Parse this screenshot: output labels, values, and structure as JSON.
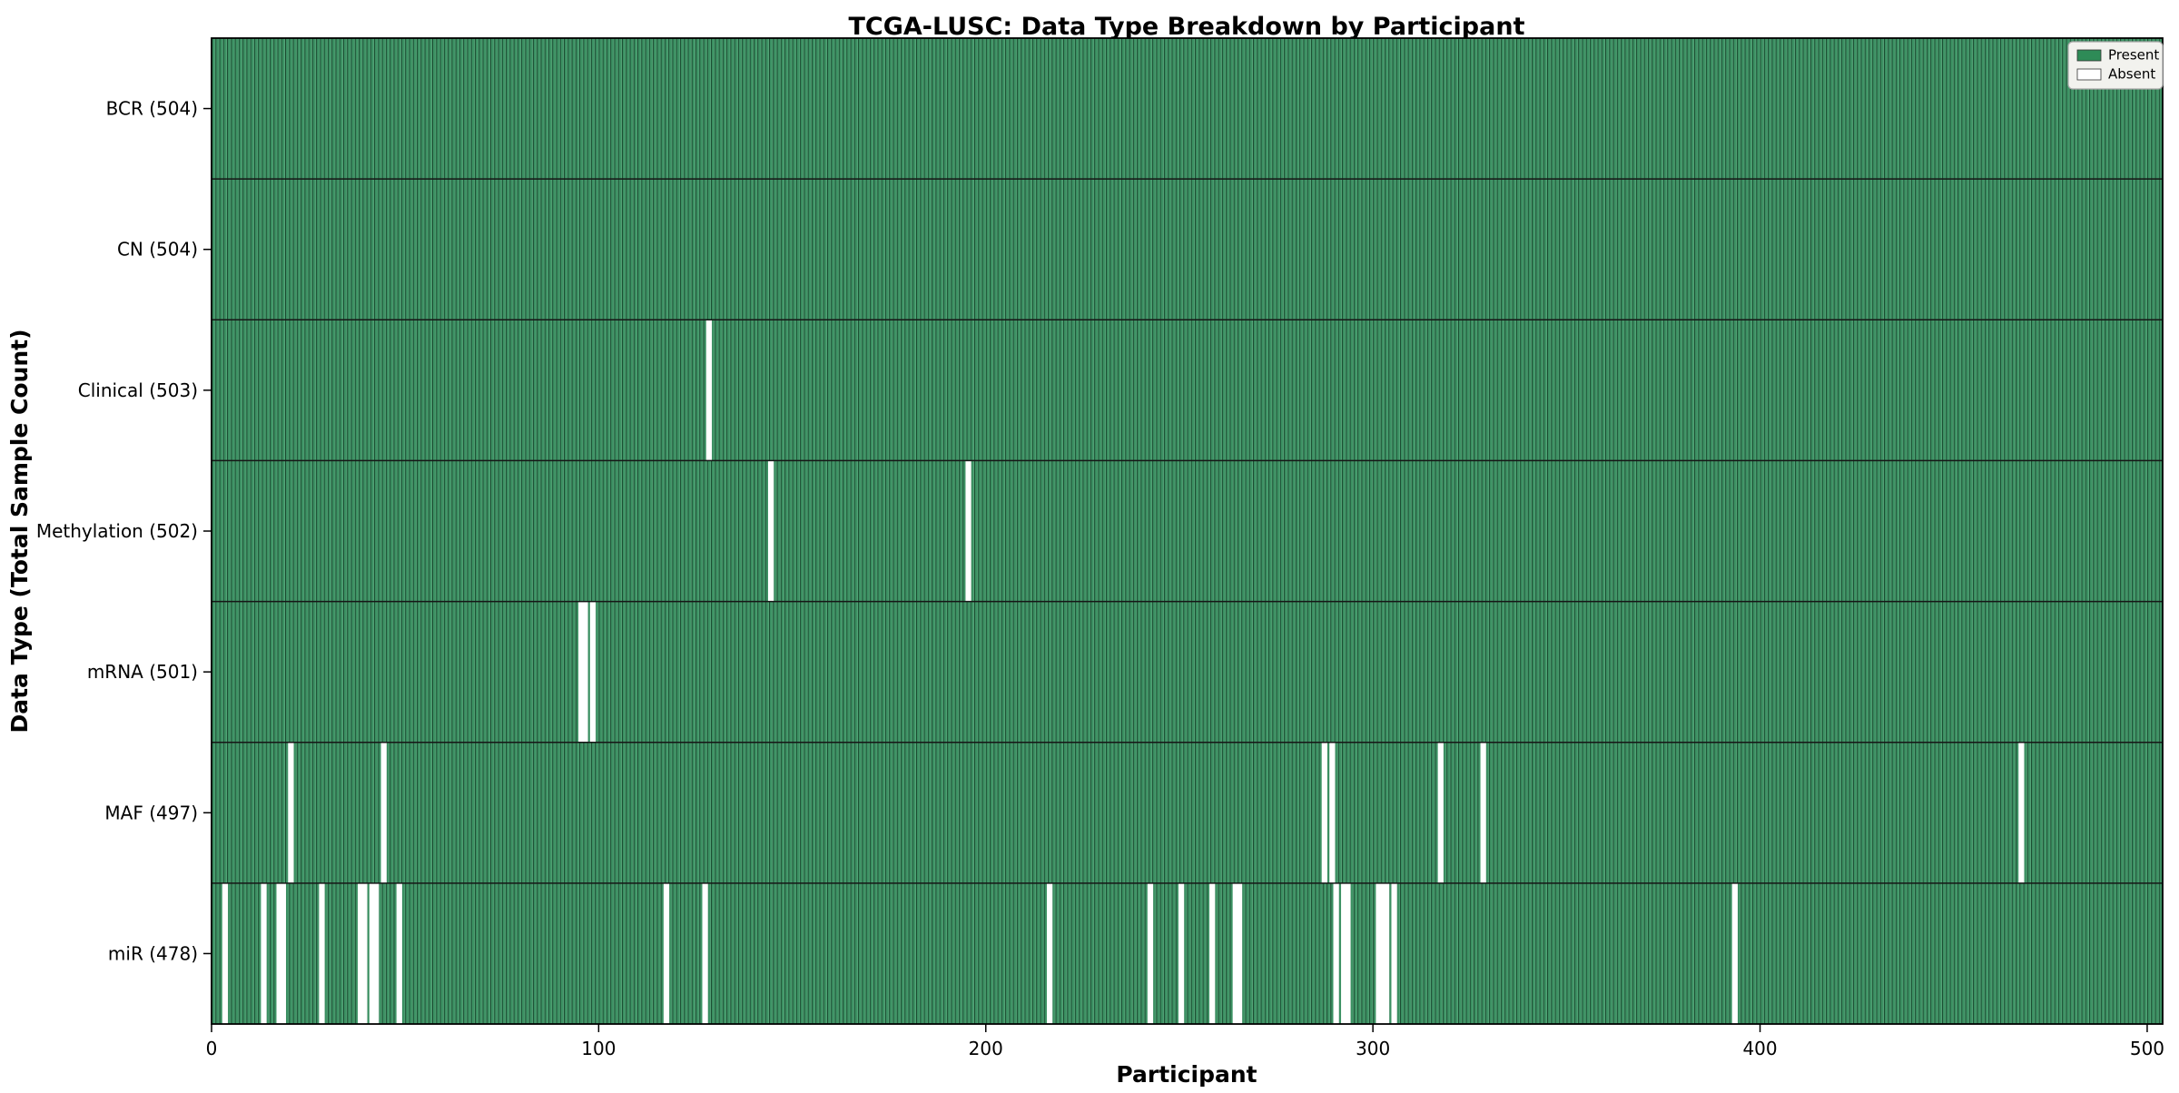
{
  "figure": {
    "kind": "matplotlib-style presence matrix",
    "background": "#ffffff"
  },
  "colors": {
    "present_green": "#2e8b57",
    "bar_face": "#3c9163",
    "bar_edge_dark": "#17462c",
    "bar_edge_light": "#61ad82",
    "absent_white": "#ffffff",
    "frame": "#000000",
    "row_divider": "#161616",
    "legend_bg": "#f2f2ee",
    "legend_border": "#a8a8a8"
  },
  "chart_data": {
    "type": "heatmap",
    "title": "TCGA-LUSC: Data Type Breakdown by Participant",
    "xlabel": "Participant",
    "ylabel": "Data Type (Total Sample Count)",
    "legend_position": "upper right",
    "grid": false,
    "n_participants": 504,
    "x_ticks": [
      0,
      100,
      200,
      300,
      400,
      500
    ],
    "x_max": 504,
    "legend": [
      {
        "label": "Present",
        "color": "#2e8b57"
      },
      {
        "label": "Absent",
        "color": "#ffffff"
      }
    ],
    "rows": [
      {
        "label": "BCR (504)",
        "data_type": "BCR",
        "total": 504,
        "absent": []
      },
      {
        "label": "CN (504)",
        "data_type": "CN",
        "total": 504,
        "absent": []
      },
      {
        "label": "Clinical (503)",
        "data_type": "Clinical",
        "total": 503,
        "absent": [
          128
        ]
      },
      {
        "label": "Methylation (502)",
        "data_type": "Methylation",
        "total": 502,
        "absent": [
          144,
          195
        ]
      },
      {
        "label": "mRNA (501)",
        "data_type": "mRNA",
        "total": 501,
        "absent": [
          95,
          96,
          98
        ]
      },
      {
        "label": "MAF (497)",
        "data_type": "MAF",
        "total": 497,
        "absent": [
          20,
          44,
          287,
          289,
          317,
          328,
          467
        ]
      },
      {
        "label": "miR (478)",
        "data_type": "miR",
        "total": 478,
        "absent": [
          3,
          13,
          17,
          18,
          28,
          38,
          39,
          41,
          42,
          48,
          117,
          127,
          216,
          242,
          250,
          258,
          264,
          265,
          290,
          292,
          293,
          301,
          302,
          303,
          305,
          393
        ]
      }
    ]
  }
}
